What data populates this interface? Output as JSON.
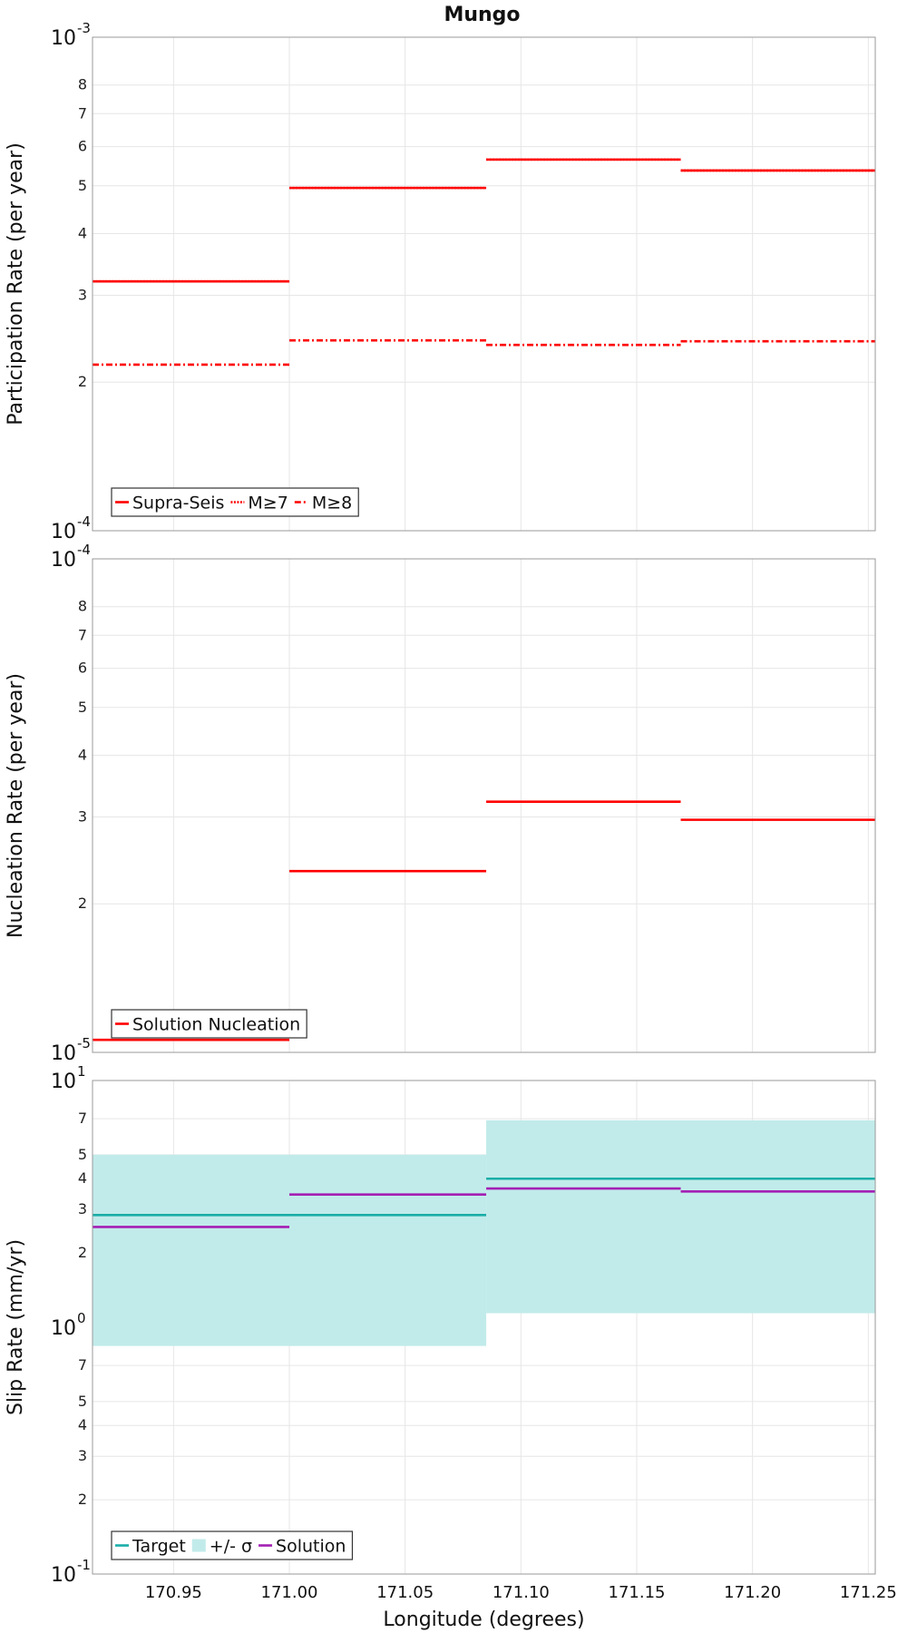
{
  "chart_data": [
    {
      "type": "line",
      "title": "Mungo",
      "ylabel": "Participation Rate (per year)",
      "xlabel": "",
      "xlim": [
        170.915,
        171.253
      ],
      "ylim": [
        0.0001,
        0.001
      ],
      "yscale": "log",
      "grid": true,
      "legend_position": "bottom-left",
      "y_major_ticks": [
        {
          "value": 0.0001,
          "base": "10",
          "exp": "-4"
        },
        {
          "value": 0.001,
          "base": "10",
          "exp": "-3"
        }
      ],
      "y_minor_ticks": [
        {
          "value": 0.0002,
          "label": "2"
        },
        {
          "value": 0.0003,
          "label": "3"
        },
        {
          "value": 0.0004,
          "label": "4"
        },
        {
          "value": 0.0005,
          "label": "5"
        },
        {
          "value": 0.0006,
          "label": "6"
        },
        {
          "value": 0.0007,
          "label": "7"
        },
        {
          "value": 0.0008,
          "label": "8"
        }
      ],
      "series": [
        {
          "name": "Supra-Seis",
          "style": "solid",
          "color": "#ff0000",
          "segments": [
            [
              170.915,
              171.0,
              0.00032
            ],
            [
              171.0,
              171.085,
              0.000495
            ],
            [
              171.085,
              171.169,
              0.000565
            ],
            [
              171.169,
              171.253,
              0.000537
            ]
          ]
        },
        {
          "name": "M≥7",
          "style": "dotted",
          "color": "#ff0000",
          "segments": [
            [
              170.915,
              171.0,
              0.00032
            ],
            [
              171.0,
              171.085,
              0.000495
            ],
            [
              171.085,
              171.169,
              0.000565
            ],
            [
              171.169,
              171.253,
              0.000537
            ]
          ]
        },
        {
          "name": "M≥8",
          "style": "dashdot",
          "color": "#ff0000",
          "segments": [
            [
              170.915,
              171.0,
              0.000217
            ],
            [
              171.0,
              171.085,
              0.000243
            ],
            [
              171.085,
              171.169,
              0.000238
            ],
            [
              171.169,
              171.253,
              0.000242
            ]
          ]
        }
      ]
    },
    {
      "type": "line",
      "title": "",
      "ylabel": "Nucleation Rate (per year)",
      "xlabel": "",
      "xlim": [
        170.915,
        171.253
      ],
      "ylim": [
        1e-05,
        0.0001
      ],
      "yscale": "log",
      "grid": true,
      "legend_position": "bottom-left",
      "y_major_ticks": [
        {
          "value": 1e-05,
          "base": "10",
          "exp": "-5"
        },
        {
          "value": 0.0001,
          "base": "10",
          "exp": "-4"
        }
      ],
      "y_minor_ticks": [
        {
          "value": 2e-05,
          "label": "2"
        },
        {
          "value": 3e-05,
          "label": "3"
        },
        {
          "value": 4e-05,
          "label": "4"
        },
        {
          "value": 5e-05,
          "label": "5"
        },
        {
          "value": 6e-05,
          "label": "6"
        },
        {
          "value": 7e-05,
          "label": "7"
        },
        {
          "value": 8e-05,
          "label": "8"
        }
      ],
      "series": [
        {
          "name": "Solution Nucleation",
          "style": "solid",
          "color": "#ff0000",
          "segments": [
            [
              170.915,
              171.0,
              1.06e-05
            ],
            [
              171.0,
              171.085,
              2.33e-05
            ],
            [
              171.085,
              171.169,
              3.22e-05
            ],
            [
              171.169,
              171.253,
              2.96e-05
            ]
          ]
        }
      ]
    },
    {
      "type": "line",
      "title": "",
      "ylabel": "Slip Rate (mm/yr)",
      "xlabel": "Longitude (degrees)",
      "xlim": [
        170.915,
        171.253
      ],
      "ylim": [
        0.1,
        10
      ],
      "yscale": "log",
      "grid": true,
      "legend_position": "bottom-left",
      "x_ticks": [
        "170.95",
        "171.00",
        "171.05",
        "171.10",
        "171.15",
        "171.20",
        "171.25"
      ],
      "y_major_ticks": [
        {
          "value": 0.1,
          "base": "10",
          "exp": "-1"
        },
        {
          "value": 1,
          "base": "10",
          "exp": "0"
        },
        {
          "value": 10,
          "base": "10",
          "exp": "1"
        }
      ],
      "y_minor_ticks": [
        {
          "value": 0.2,
          "label": "2"
        },
        {
          "value": 0.3,
          "label": "3"
        },
        {
          "value": 0.4,
          "label": "4"
        },
        {
          "value": 0.5,
          "label": "5"
        },
        {
          "value": 0.7,
          "label": "7"
        },
        {
          "value": 2,
          "label": "2"
        },
        {
          "value": 3,
          "label": "3"
        },
        {
          "value": 4,
          "label": "4"
        },
        {
          "value": 5,
          "label": "5"
        },
        {
          "value": 7,
          "label": "7"
        }
      ],
      "bands": [
        {
          "name": "+/- σ",
          "color": "#c1ebea",
          "segments": [
            [
              170.915,
              171.085,
              0.84,
              5.0
            ],
            [
              171.085,
              171.253,
              1.14,
              6.9
            ]
          ]
        }
      ],
      "series": [
        {
          "name": "Target",
          "style": "solid",
          "color": "#1aada8",
          "segments": [
            [
              170.915,
              171.085,
              2.85
            ],
            [
              171.085,
              171.253,
              4.0
            ]
          ]
        },
        {
          "name": "Solution",
          "style": "solid",
          "color": "#a41fb4",
          "segments": [
            [
              170.915,
              171.0,
              2.55
            ],
            [
              171.0,
              171.085,
              3.45
            ],
            [
              171.085,
              171.169,
              3.65
            ],
            [
              171.169,
              171.253,
              3.55
            ]
          ]
        }
      ],
      "legend_order": [
        "Target",
        "+/- σ",
        "Solution"
      ]
    }
  ]
}
